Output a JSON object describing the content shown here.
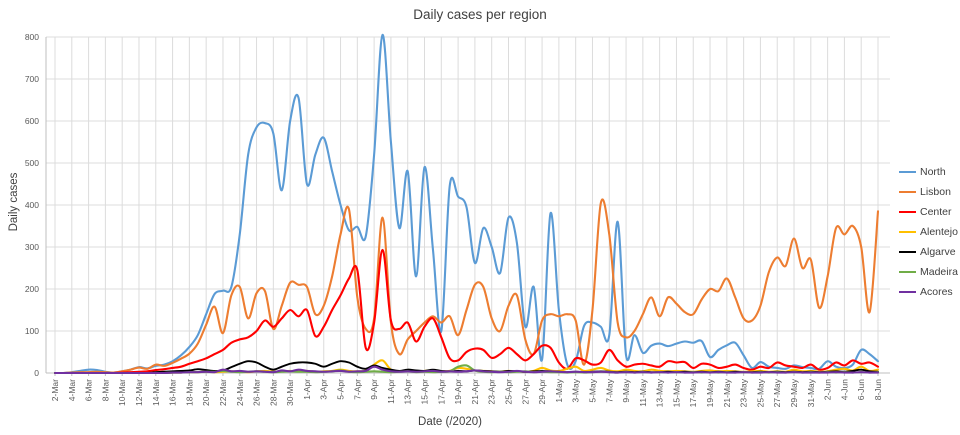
{
  "chart_data": {
    "type": "line",
    "title": "Daily cases per region",
    "xlabel": "Date (/2020)",
    "ylabel": "Daily cases",
    "ylim": [
      0,
      800
    ],
    "y_ticks": [
      0,
      100,
      200,
      300,
      400,
      500,
      600,
      700,
      800
    ],
    "x_tick_every_days": 2,
    "grid": true,
    "legend_position": "right",
    "line_style": "smooth",
    "dates": [
      "2-Mar",
      "3-Mar",
      "4-Mar",
      "5-Mar",
      "6-Mar",
      "7-Mar",
      "8-Mar",
      "9-Mar",
      "10-Mar",
      "11-Mar",
      "12-Mar",
      "13-Mar",
      "14-Mar",
      "15-Mar",
      "16-Mar",
      "17-Mar",
      "18-Mar",
      "19-Mar",
      "20-Mar",
      "21-Mar",
      "22-Mar",
      "23-Mar",
      "24-Mar",
      "25-Mar",
      "26-Mar",
      "27-Mar",
      "28-Mar",
      "29-Mar",
      "30-Mar",
      "31-Mar",
      "1-Apr",
      "2-Apr",
      "3-Apr",
      "4-Apr",
      "5-Apr",
      "6-Apr",
      "7-Apr",
      "8-Apr",
      "9-Apr",
      "10-Apr",
      "11-Apr",
      "12-Apr",
      "13-Apr",
      "14-Apr",
      "15-Apr",
      "16-Apr",
      "17-Apr",
      "18-Apr",
      "19-Apr",
      "20-Apr",
      "21-Apr",
      "22-Apr",
      "23-Apr",
      "24-Apr",
      "25-Apr",
      "26-Apr",
      "27-Apr",
      "28-Apr",
      "29-Apr",
      "30-Apr",
      "1-May",
      "2-May",
      "3-May",
      "4-May",
      "5-May",
      "6-May",
      "7-May",
      "8-May",
      "9-May",
      "10-May",
      "11-May",
      "12-May",
      "13-May",
      "14-May",
      "15-May",
      "16-May",
      "17-May",
      "18-May",
      "19-May",
      "20-May",
      "21-May",
      "22-May",
      "23-May",
      "24-May",
      "25-May",
      "26-May",
      "27-May",
      "28-May",
      "29-May",
      "30-May",
      "31-May",
      "1-Jun",
      "2-Jun",
      "3-Jun",
      "4-Jun",
      "5-Jun",
      "6-Jun",
      "7-Jun",
      "8-Jun"
    ],
    "series": [
      {
        "name": "North",
        "color": "#5B9BD5",
        "values": [
          0,
          0,
          2,
          5,
          8,
          7,
          3,
          1,
          4,
          8,
          14,
          11,
          17,
          20,
          28,
          42,
          62,
          90,
          140,
          188,
          196,
          205,
          330,
          520,
          585,
          595,
          570,
          435,
          600,
          655,
          450,
          520,
          560,
          480,
          400,
          340,
          348,
          325,
          520,
          805,
          550,
          345,
          480,
          230,
          490,
          295,
          100,
          445,
          420,
          395,
          262,
          345,
          300,
          238,
          370,
          310,
          110,
          205,
          32,
          380,
          150,
          20,
          28,
          112,
          120,
          110,
          90,
          360,
          42,
          90,
          48,
          65,
          70,
          64,
          70,
          75,
          72,
          76,
          38,
          55,
          66,
          72,
          42,
          12,
          26,
          15,
          12,
          10,
          18,
          14,
          12,
          10,
          28,
          15,
          12,
          20,
          55,
          45,
          28
        ]
      },
      {
        "name": "Lisbon",
        "color": "#ED7D31",
        "values": [
          0,
          0,
          1,
          2,
          2,
          3,
          2,
          1,
          4,
          8,
          13,
          10,
          20,
          17,
          24,
          34,
          46,
          70,
          115,
          158,
          95,
          185,
          205,
          130,
          190,
          195,
          105,
          160,
          215,
          210,
          205,
          140,
          160,
          230,
          330,
          390,
          180,
          105,
          130,
          370,
          120,
          45,
          80,
          100,
          120,
          135,
          120,
          135,
          90,
          150,
          210,
          205,
          130,
          100,
          160,
          185,
          80,
          45,
          125,
          140,
          135,
          140,
          125,
          20,
          150,
          405,
          330,
          120,
          85,
          100,
          140,
          180,
          135,
          180,
          165,
          145,
          140,
          175,
          200,
          195,
          225,
          180,
          130,
          125,
          160,
          240,
          275,
          255,
          320,
          250,
          270,
          155,
          230,
          345,
          330,
          350,
          300,
          145,
          385
        ]
      },
      {
        "name": "Center",
        "color": "#FF0000",
        "values": [
          0,
          0,
          0,
          0,
          0,
          0,
          0,
          0,
          1,
          2,
          3,
          4,
          7,
          9,
          12,
          15,
          22,
          28,
          35,
          45,
          55,
          72,
          80,
          85,
          100,
          125,
          110,
          130,
          150,
          135,
          150,
          88,
          110,
          150,
          185,
          225,
          245,
          60,
          120,
          293,
          125,
          105,
          120,
          75,
          110,
          130,
          85,
          35,
          30,
          50,
          58,
          55,
          36,
          45,
          60,
          45,
          30,
          45,
          65,
          60,
          25,
          10,
          35,
          30,
          20,
          25,
          55,
          30,
          15,
          20,
          22,
          18,
          15,
          28,
          25,
          26,
          12,
          22,
          20,
          12,
          15,
          20,
          12,
          8,
          15,
          12,
          25,
          18,
          15,
          12,
          20,
          8,
          12,
          25,
          18,
          30,
          22,
          25,
          15
        ]
      },
      {
        "name": "Alentejo",
        "color": "#FFC000",
        "values": [
          0,
          0,
          0,
          0,
          0,
          0,
          0,
          0,
          0,
          0,
          0,
          0,
          0,
          0,
          1,
          1,
          2,
          2,
          3,
          2,
          3,
          4,
          3,
          2,
          4,
          5,
          3,
          4,
          5,
          4,
          5,
          3,
          4,
          5,
          8,
          5,
          4,
          6,
          20,
          30,
          8,
          4,
          6,
          4,
          5,
          6,
          4,
          5,
          12,
          10,
          6,
          5,
          4,
          3,
          5,
          4,
          3,
          5,
          12,
          6,
          5,
          10,
          15,
          5,
          8,
          12,
          6,
          4,
          8,
          5,
          4,
          8,
          5,
          4,
          5,
          4,
          3,
          5,
          6,
          4,
          5,
          4,
          3,
          4,
          5,
          3,
          4,
          3,
          8,
          4,
          5,
          3,
          4,
          8,
          10,
          6,
          15,
          5,
          8
        ]
      },
      {
        "name": "Algarve",
        "color": "#000000",
        "values": [
          0,
          0,
          0,
          0,
          0,
          0,
          0,
          0,
          0,
          0,
          0,
          0,
          2,
          3,
          4,
          5,
          6,
          9,
          7,
          5,
          6,
          14,
          22,
          28,
          25,
          15,
          8,
          15,
          22,
          25,
          25,
          22,
          15,
          22,
          28,
          25,
          15,
          10,
          18,
          12,
          8,
          5,
          8,
          6,
          5,
          8,
          5,
          4,
          5,
          4,
          6,
          5,
          4,
          3,
          5,
          4,
          3,
          4,
          5,
          4,
          3,
          2,
          3,
          2,
          3,
          4,
          3,
          2,
          3,
          2,
          3,
          2,
          2,
          3,
          2,
          3,
          2,
          3,
          2,
          3,
          2,
          3,
          2,
          2,
          3,
          2,
          3,
          2,
          3,
          2,
          3,
          2,
          3,
          4,
          3,
          5,
          8,
          4,
          3
        ]
      },
      {
        "name": "Madeira",
        "color": "#70AD47",
        "values": [
          0,
          0,
          0,
          0,
          0,
          0,
          0,
          0,
          0,
          0,
          0,
          0,
          0,
          0,
          1,
          1,
          2,
          2,
          3,
          3,
          5,
          3,
          2,
          3,
          4,
          3,
          2,
          3,
          4,
          3,
          3,
          2,
          3,
          4,
          6,
          3,
          2,
          3,
          4,
          3,
          2,
          3,
          4,
          2,
          3,
          2,
          3,
          4,
          15,
          18,
          6,
          3,
          2,
          3,
          2,
          3,
          4,
          2,
          3,
          2,
          2,
          1,
          2,
          1,
          2,
          3,
          2,
          1,
          2,
          1,
          2,
          1,
          2,
          1,
          2,
          1,
          2,
          1,
          2,
          1,
          2,
          1,
          2,
          1,
          2,
          1,
          2,
          1,
          2,
          1,
          2,
          1,
          2,
          1,
          2,
          1,
          2,
          1,
          2
        ]
      },
      {
        "name": "Acores",
        "color": "#7030A0",
        "values": [
          0,
          0,
          0,
          0,
          0,
          0,
          0,
          0,
          0,
          0,
          0,
          0,
          0,
          0,
          1,
          1,
          2,
          2,
          3,
          2,
          8,
          4,
          5,
          3,
          4,
          3,
          2,
          6,
          4,
          8,
          5,
          4,
          3,
          4,
          5,
          3,
          4,
          5,
          15,
          8,
          4,
          3,
          4,
          3,
          4,
          5,
          3,
          4,
          3,
          4,
          6,
          4,
          3,
          2,
          3,
          5,
          3,
          2,
          3,
          4,
          3,
          2,
          3,
          2,
          2,
          3,
          2,
          1,
          2,
          1,
          2,
          1,
          2,
          1,
          2,
          1,
          1,
          2,
          1,
          2,
          1,
          1,
          2,
          1,
          1,
          2,
          1,
          1,
          2,
          1,
          1,
          1,
          1,
          2,
          1,
          1,
          2,
          1,
          1
        ]
      }
    ]
  }
}
